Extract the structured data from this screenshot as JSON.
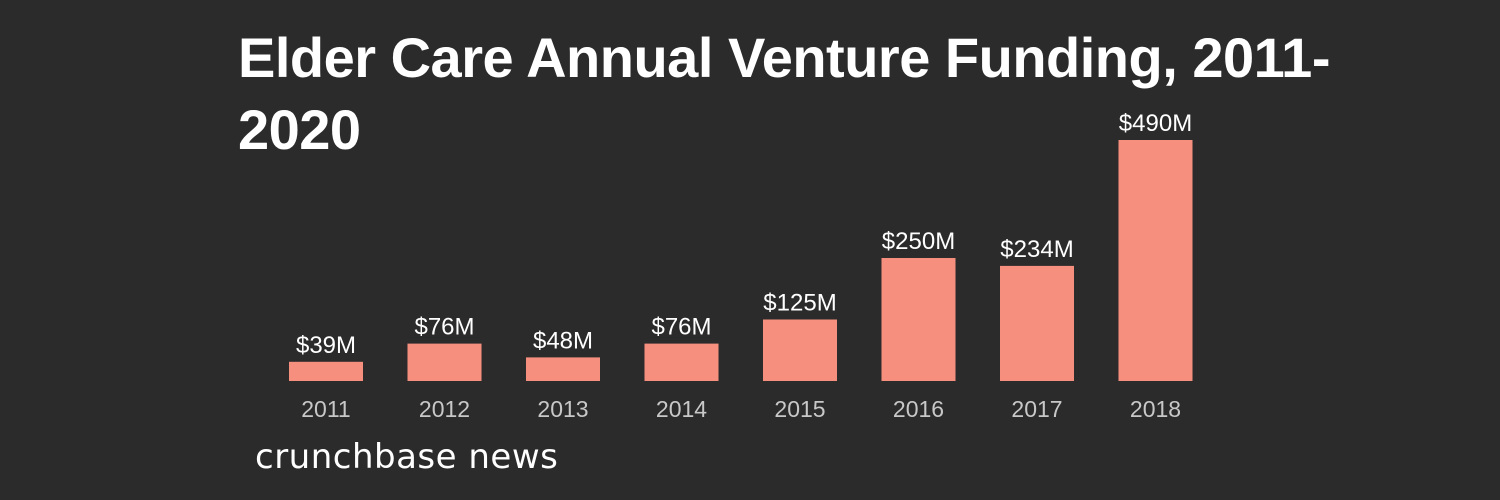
{
  "title": "Elder Care Annual Venture Funding, 2011-2020",
  "logo_text": "crunchbase news",
  "colors": {
    "background": "#2b2b2b",
    "bar": "#f78f7e",
    "text": "#ffffff",
    "tick": "#c8c8c8"
  },
  "chart_data": {
    "type": "bar",
    "title": "Elder Care Annual Venture Funding, 2011-2020",
    "categories": [
      "2011",
      "2012",
      "2013",
      "2014",
      "2015",
      "2016",
      "2017",
      "2018"
    ],
    "values": [
      39,
      76,
      48,
      76,
      125,
      250,
      234,
      490
    ],
    "data_labels": [
      "$39M",
      "$76M",
      "$48M",
      "$76M",
      "$125M",
      "$250M",
      "$234M",
      "$490M"
    ],
    "unit": "$M",
    "xlabel": "",
    "ylabel": "",
    "ylim": [
      0,
      490
    ],
    "grid": false,
    "legend": "none"
  }
}
